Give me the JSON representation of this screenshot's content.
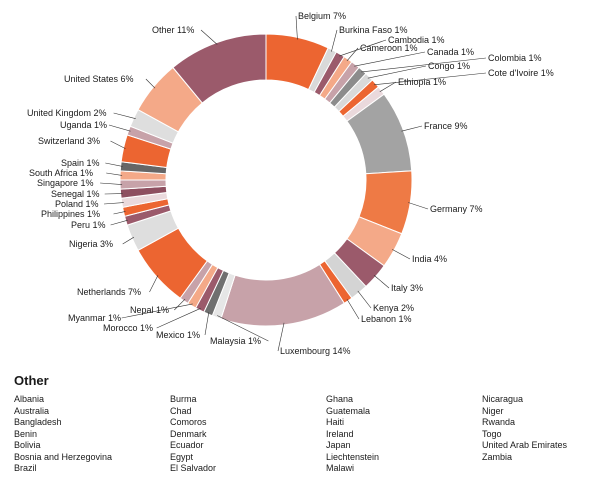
{
  "chart_data": {
    "type": "pie",
    "donut": true,
    "title": "",
    "slices": [
      {
        "label": "Belgium",
        "pct": "7%",
        "value": 7,
        "color": "#ec6531"
      },
      {
        "label": "Burkina Faso",
        "pct": "1%",
        "value": 1,
        "color": "#d9d9d9"
      },
      {
        "label": "Cambodia",
        "pct": "1%",
        "value": 1,
        "color": "#9b5a6b"
      },
      {
        "label": "Cameroon",
        "pct": "1%",
        "value": 1,
        "color": "#f4a988"
      },
      {
        "label": "Canada",
        "pct": "1%",
        "value": 1,
        "color": "#c7a2a9"
      },
      {
        "label": "Colombia",
        "pct": "1%",
        "value": 1,
        "color": "#8c8c8c"
      },
      {
        "label": "Congo",
        "pct": "1%",
        "value": 1,
        "color": "#d9d9d9"
      },
      {
        "label": "Cote d'Ivoire",
        "pct": "1%",
        "value": 1,
        "color": "#ec6531"
      },
      {
        "label": "Ethiopia",
        "pct": "1%",
        "value": 1,
        "color": "#ead9dc"
      },
      {
        "label": "France",
        "pct": "9%",
        "value": 9,
        "color": "#a3a3a3"
      },
      {
        "label": "Germany",
        "pct": "7%",
        "value": 7,
        "color": "#ee7a45"
      },
      {
        "label": "India",
        "pct": "4%",
        "value": 4,
        "color": "#f4a988"
      },
      {
        "label": "Italy",
        "pct": "3%",
        "value": 3,
        "color": "#9b5a6b"
      },
      {
        "label": "Kenya",
        "pct": "2%",
        "value": 2,
        "color": "#d4d4d4"
      },
      {
        "label": "Lebanon",
        "pct": "1%",
        "value": 1,
        "color": "#ec6531"
      },
      {
        "label": "Luxembourg",
        "pct": "14%",
        "value": 14,
        "color": "#c7a2a9"
      },
      {
        "label": "Malaysia",
        "pct": "1%",
        "value": 1,
        "color": "#e6e6e6"
      },
      {
        "label": "Mexico",
        "pct": "1%",
        "value": 1,
        "color": "#6f6f6f"
      },
      {
        "label": "Morocco",
        "pct": "1%",
        "value": 1,
        "color": "#9b5a6b"
      },
      {
        "label": "Myanmar",
        "pct": "1%",
        "value": 1,
        "color": "#f4a988"
      },
      {
        "label": "Nepal",
        "pct": "1%",
        "value": 1,
        "color": "#c7a2a9"
      },
      {
        "label": "Netherlands",
        "pct": "7%",
        "value": 7,
        "color": "#ec6531"
      },
      {
        "label": "Nigeria",
        "pct": "3%",
        "value": 3,
        "color": "#dedede"
      },
      {
        "label": "Peru",
        "pct": "1%",
        "value": 1,
        "color": "#9b5a6b"
      },
      {
        "label": "Philippines",
        "pct": "1%",
        "value": 1,
        "color": "#ec6531"
      },
      {
        "label": "Poland",
        "pct": "1%",
        "value": 1,
        "color": "#ead9dc"
      },
      {
        "label": "Senegal",
        "pct": "1%",
        "value": 1,
        "color": "#8e4f60"
      },
      {
        "label": "Singapore",
        "pct": "1%",
        "value": 1,
        "color": "#c7a2a9"
      },
      {
        "label": "South Africa",
        "pct": "1%",
        "value": 1,
        "color": "#f4a988"
      },
      {
        "label": "Spain",
        "pct": "1%",
        "value": 1,
        "color": "#666666"
      },
      {
        "label": "Switzerland",
        "pct": "3%",
        "value": 3,
        "color": "#ec6531"
      },
      {
        "label": "Uganda",
        "pct": "1%",
        "value": 1,
        "color": "#c7a2a9"
      },
      {
        "label": "United Kingdom",
        "pct": "2%",
        "value": 2,
        "color": "#dedede"
      },
      {
        "label": "United States",
        "pct": "6%",
        "value": 6,
        "color": "#f4a988"
      },
      {
        "label": "Other",
        "pct": "11%",
        "value": 11,
        "color": "#9b5a6b"
      }
    ]
  },
  "other": {
    "title": "Other",
    "columns": [
      [
        "Albania",
        "Australia",
        "Bangladesh",
        "Benin",
        "Bolivia",
        "Bosnia and Herzegovina",
        "Brazil"
      ],
      [
        "Burma",
        "Chad",
        "Comoros",
        "Denmark",
        "Ecuador",
        "Egypt",
        "El Salvador"
      ],
      [
        "Ghana",
        "Guatemala",
        "Haiti",
        "Ireland",
        "Japan",
        "Liechtenstein",
        "Malawi"
      ],
      [
        "Nicaragua",
        "Niger",
        "Rwanda",
        "Togo",
        "United Arab Emirates",
        "Zambia"
      ]
    ]
  }
}
